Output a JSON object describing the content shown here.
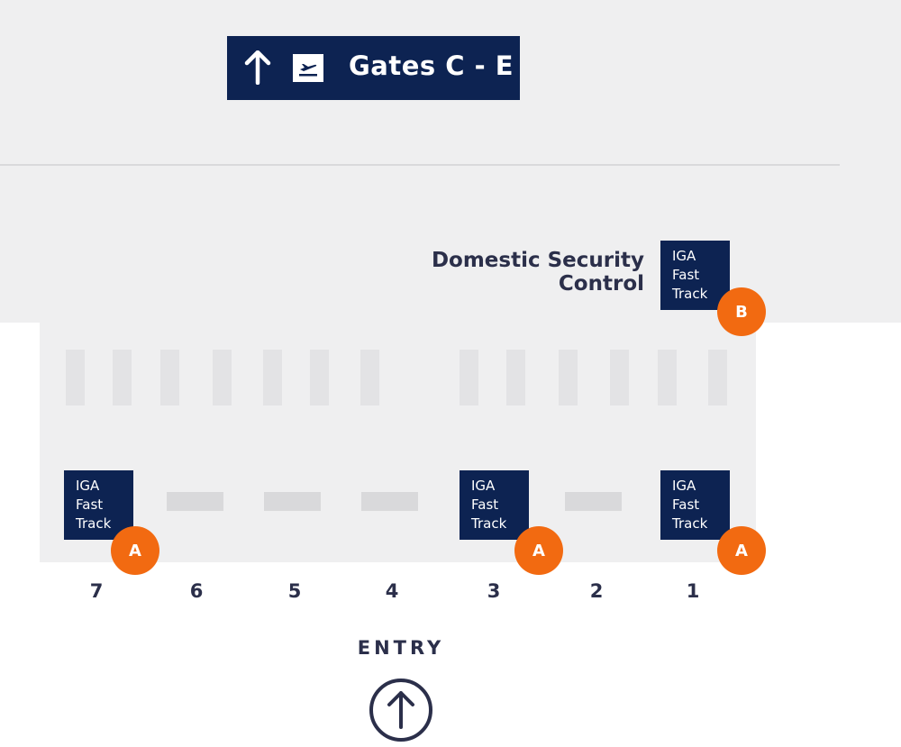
{
  "sign": {
    "arrow_icon": "arrow-up-icon",
    "plane_icon": "departures-icon",
    "text": "Gates C - E"
  },
  "security": {
    "line1": "Domestic Security",
    "line2": "Control"
  },
  "iga_label": {
    "line1": "IGA",
    "line2": "Fast",
    "line3": "Track"
  },
  "markers": {
    "a": "A",
    "b": "B"
  },
  "lanes": [
    "7",
    "6",
    "5",
    "4",
    "3",
    "2",
    "1"
  ],
  "entry": {
    "label": "ENTRY",
    "icon": "entry-arrow-icon"
  },
  "colors": {
    "navy": "#0d2352",
    "orange": "#f26a11",
    "floor": "#efeff0",
    "text": "#2b2f4a"
  }
}
